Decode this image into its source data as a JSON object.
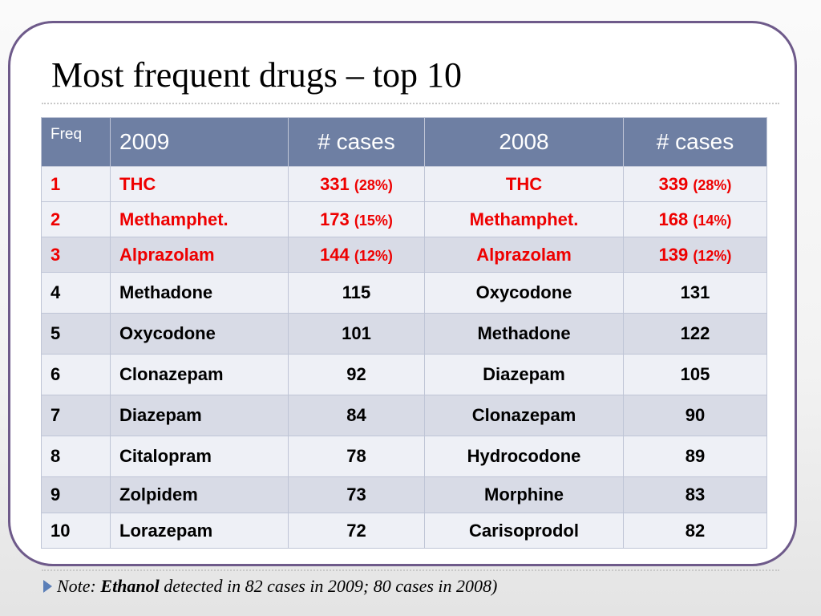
{
  "slide": {
    "title": "Most frequent drugs – top 10"
  },
  "table": {
    "headers": [
      "Freq",
      "2009",
      "# cases",
      "2008",
      "# cases"
    ],
    "rows": [
      {
        "freq": "1",
        "drug2009": "THC",
        "cases2009": "331",
        "pct2009": "(28%)",
        "drug2008": "THC",
        "cases2008": "339",
        "pct2008": "(28%)"
      },
      {
        "freq": "2",
        "drug2009": "Methamphet.",
        "cases2009": "173",
        "pct2009": "(15%)",
        "drug2008": "Methamphet.",
        "cases2008": "168",
        "pct2008": "(14%)"
      },
      {
        "freq": "3",
        "drug2009": "Alprazolam",
        "cases2009": "144",
        "pct2009": "(12%)",
        "drug2008": "Alprazolam",
        "cases2008": "139",
        "pct2008": "(12%)"
      },
      {
        "freq": "4",
        "drug2009": "Methadone",
        "cases2009": "115",
        "drug2008": "Oxycodone",
        "cases2008": "131"
      },
      {
        "freq": "5",
        "drug2009": "Oxycodone",
        "cases2009": "101",
        "drug2008": "Methadone",
        "cases2008": "122"
      },
      {
        "freq": "6",
        "drug2009": "Clonazepam",
        "cases2009": "92",
        "drug2008": "Diazepam",
        "cases2008": "105"
      },
      {
        "freq": "7",
        "drug2009": "Diazepam",
        "cases2009": "84",
        "drug2008": "Clonazepam",
        "cases2008": "90"
      },
      {
        "freq": "8",
        "drug2009": "Citalopram",
        "cases2009": "78",
        "drug2008": "Hydrocodone",
        "cases2008": "89"
      },
      {
        "freq": "9",
        "drug2009": "Zolpidem",
        "cases2009": "73",
        "drug2008": "Morphine",
        "cases2008": "83"
      },
      {
        "freq": "10",
        "drug2009": "Lorazepam",
        "cases2009": "72",
        "drug2008": "Carisoprodol",
        "cases2008": "82"
      }
    ]
  },
  "note": {
    "prefix": "Note:",
    "emphasis": "Ethanol",
    "text": "detected in 82 cases in 2009; 80 cases in 2008)"
  },
  "colors": {
    "header_bg": "#6e7fa3",
    "highlight_text": "#ee0000",
    "frame_border": "#6e5a8a",
    "bullet": "#5b7fb8"
  }
}
